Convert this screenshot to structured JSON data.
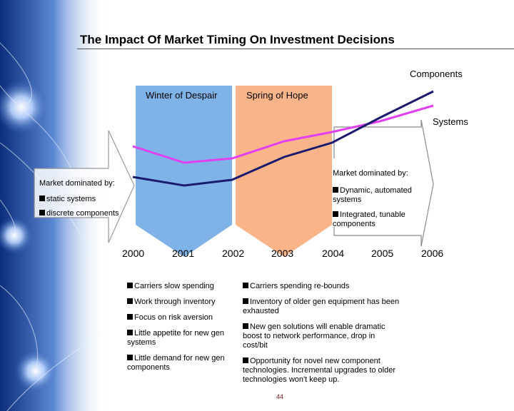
{
  "title": "The Impact Of Market Timing On Investment Decisions",
  "periods": {
    "winter": "Winter of Despair",
    "spring": "Spring of Hope"
  },
  "series": {
    "components": "Components",
    "systems": "Systems"
  },
  "left_market": {
    "heading": "Market dominated by:",
    "items": [
      "static systems",
      "discrete components"
    ]
  },
  "right_market": {
    "heading": "Market dominated by:",
    "items": [
      "Dynamic, automated systems",
      "Integrated, tunable components"
    ]
  },
  "years": [
    "2000",
    "2001",
    "2002",
    "2003",
    "2004",
    "2005",
    "2006"
  ],
  "winter_list": [
    "Carriers slow spending",
    "Work through inventory",
    "Focus on risk aversion",
    "Little appetite for new gen systems",
    "Little demand for new gen components"
  ],
  "spring_list": [
    "Carriers spending re-bounds",
    "Inventory of older gen equipment has been exhausted",
    "New gen solutions will enable dramatic boost to network performance, drop in cost/bit",
    "Opportunity for novel new component technologies. Incremental upgrades to older technologies won't keep up."
  ],
  "page_number": "44",
  "colors": {
    "winter_band": "#7fb2e6",
    "spring_band": "#f9b48a",
    "components_line": "#1a1a6e",
    "systems_line": "#e040f0",
    "fiber_blue": "#1f4fa8"
  }
}
